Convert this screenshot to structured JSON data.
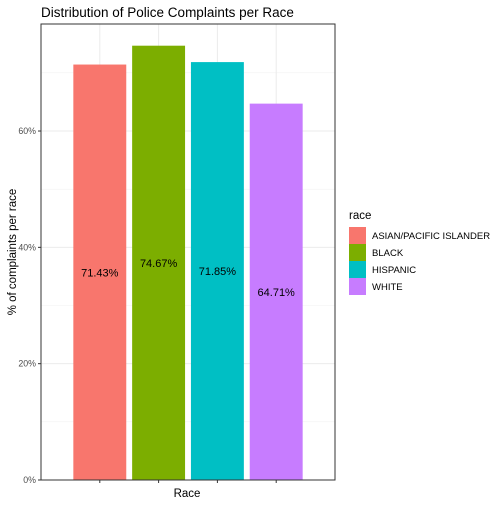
{
  "chart_data": {
    "type": "bar",
    "title": "Distribution of Police Complaints per Race",
    "xlabel": "Race",
    "ylabel": "% of complaints per race",
    "categories": [
      "ASIAN/PACIFIC ISLANDER",
      "BLACK",
      "HISPANIC",
      "WHITE"
    ],
    "values": [
      71.43,
      74.67,
      71.85,
      64.71
    ],
    "value_labels": [
      "71.43%",
      "74.67%",
      "71.85%",
      "64.71%"
    ],
    "colors": [
      "#F8766D",
      "#7CAE00",
      "#00BFC4",
      "#C77CFF"
    ],
    "ylim": [
      0,
      78.4
    ],
    "yticks": [
      0,
      20,
      40,
      60
    ],
    "ytick_labels": [
      "0%",
      "20%",
      "40%",
      "60%"
    ],
    "grid": true,
    "legend": {
      "title": "race",
      "placement": "right",
      "entries": [
        "ASIAN/PACIFIC ISLANDER",
        "BLACK",
        "HISPANIC",
        "WHITE"
      ]
    }
  }
}
